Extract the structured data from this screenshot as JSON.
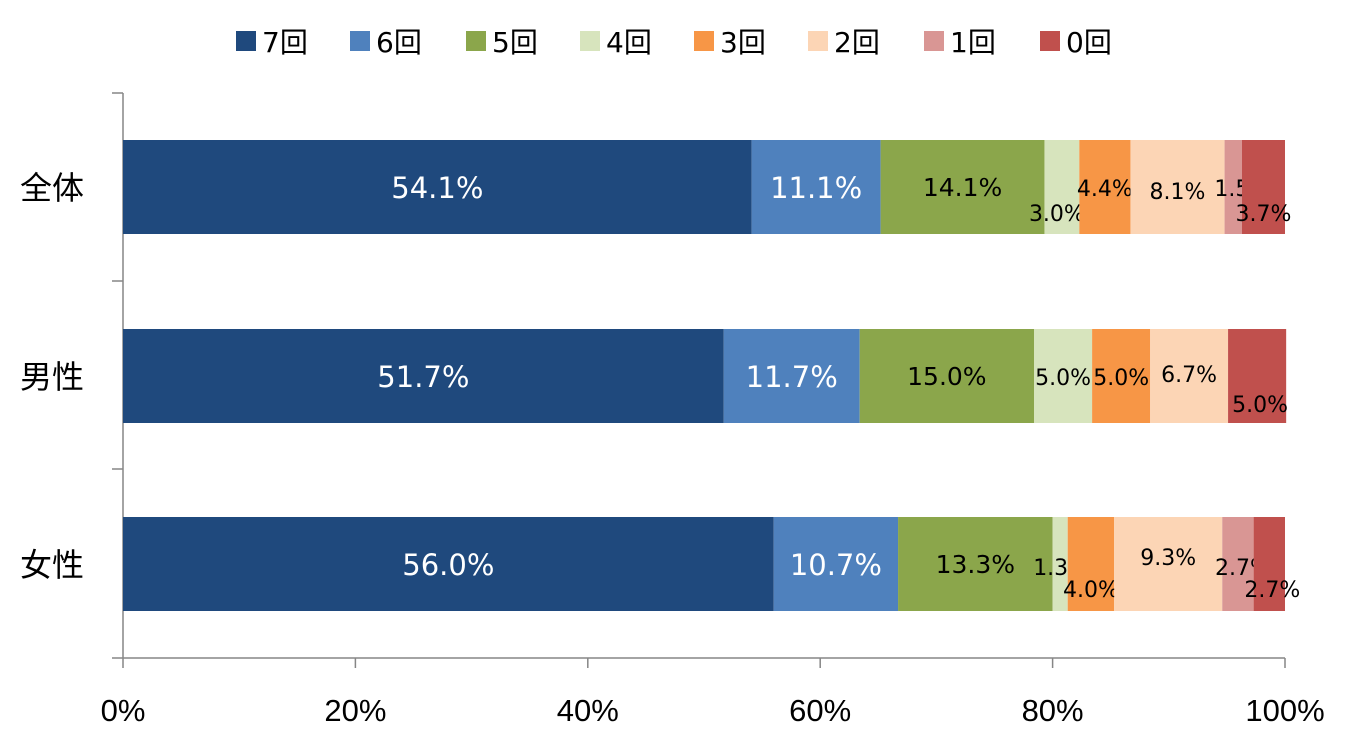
{
  "chart_data": {
    "type": "bar",
    "orientation": "horizontal",
    "stacked": "percent",
    "categories": [
      "全体",
      "男性",
      "女性"
    ],
    "series": [
      {
        "name": "7回",
        "color": "#1F497D",
        "values": [
          54.1,
          51.7,
          56.0
        ],
        "labels": [
          "54.1%",
          "51.7%",
          "56.0%"
        ]
      },
      {
        "name": "6回",
        "color": "#4F81BD",
        "values": [
          11.1,
          11.7,
          10.7
        ],
        "labels": [
          "11.1%",
          "11.7%",
          "10.7%"
        ]
      },
      {
        "name": "5回",
        "color": "#8BA64B",
        "values": [
          14.1,
          15.0,
          13.3
        ],
        "labels": [
          "14.1%",
          "15.0%",
          "13.3%"
        ]
      },
      {
        "name": "4回",
        "color": "#D7E4BD",
        "values": [
          3.0,
          5.0,
          1.3
        ],
        "labels": [
          "3.0%",
          "5.0%",
          "1.3%"
        ]
      },
      {
        "name": "3回",
        "color": "#F79646",
        "values": [
          4.4,
          5.0,
          4.0
        ],
        "labels": [
          "4.4%",
          "5.0%",
          "4.0%"
        ]
      },
      {
        "name": "2回",
        "color": "#FCD5B5",
        "values": [
          8.1,
          6.7,
          9.3
        ],
        "labels": [
          "8.1%",
          "6.7%",
          "9.3%"
        ]
      },
      {
        "name": "1回",
        "color": "#D99694",
        "values": [
          1.5,
          0,
          2.7
        ],
        "labels": [
          "1.5%",
          "",
          "2.7%"
        ]
      },
      {
        "name": "0回",
        "color": "#C0504D",
        "values": [
          3.7,
          5.0,
          2.7
        ],
        "labels": [
          "3.7%",
          "5.0%",
          "2.7%"
        ]
      }
    ],
    "xlim": [
      0,
      100
    ],
    "xticks": [
      "0%",
      "20%",
      "40%",
      "60%",
      "80%",
      "100%"
    ],
    "legend_position": "top",
    "grid": false,
    "title": "",
    "xlabel": "",
    "ylabel": ""
  }
}
